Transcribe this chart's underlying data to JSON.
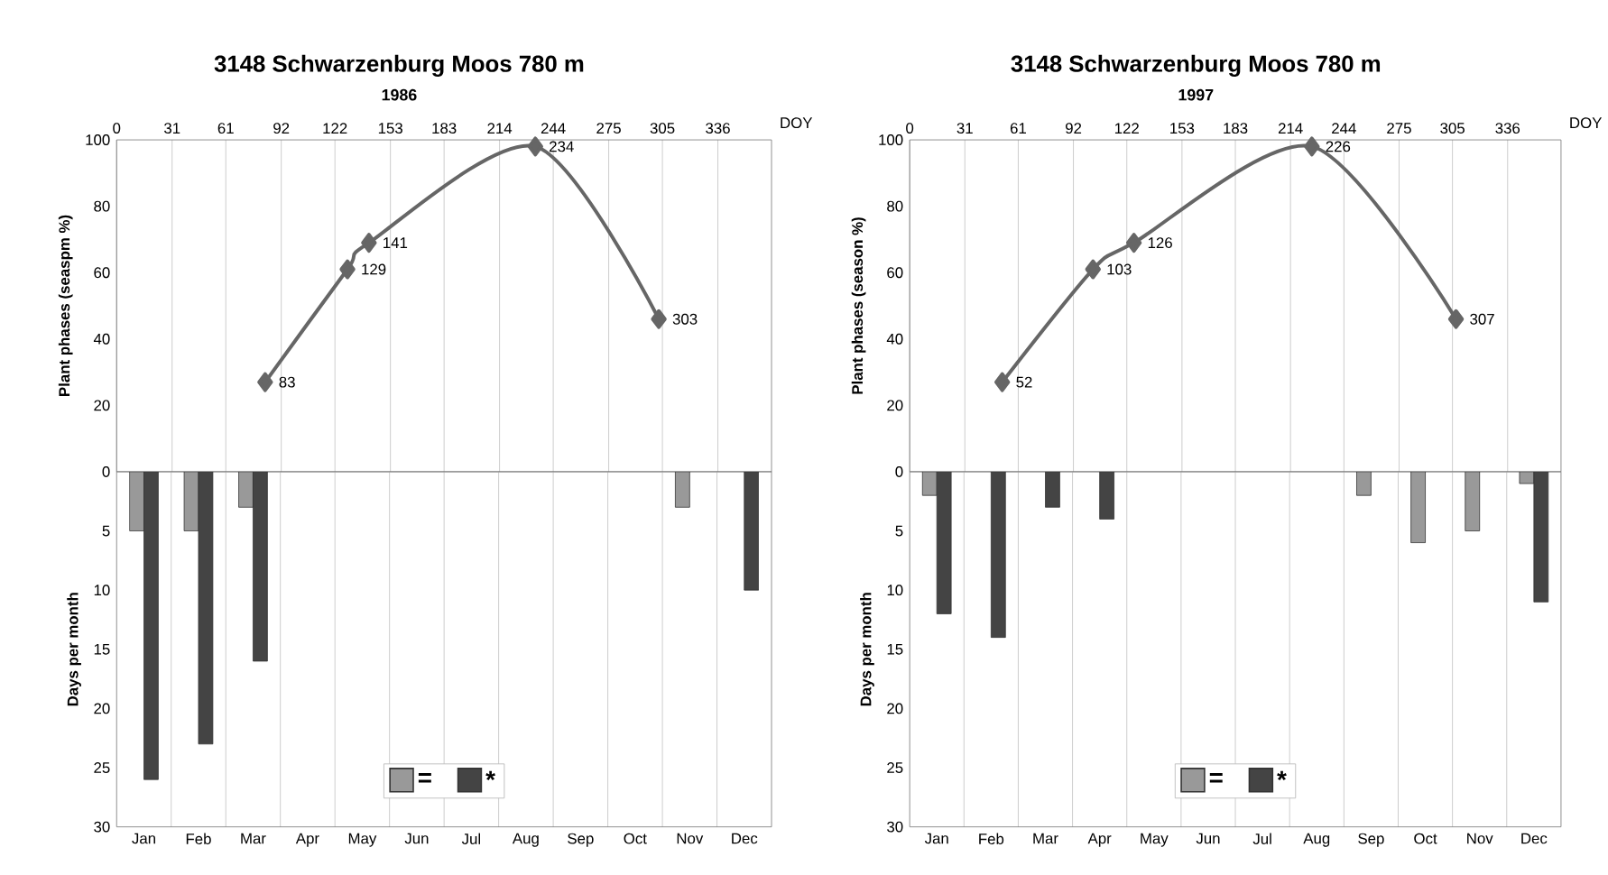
{
  "chart_data": [
    {
      "type": "line",
      "title": "3148 Schwarzenburg Moos 780 m",
      "subtitle": "1986",
      "xlabel": "DOY",
      "ylabel": "Plant phases (seaspm %)",
      "x": [
        83,
        129,
        141,
        234,
        303
      ],
      "xlim": [
        0,
        366
      ],
      "xticks": [
        0,
        31,
        61,
        92,
        122,
        153,
        183,
        214,
        244,
        275,
        305,
        336
      ],
      "ylim": [
        0,
        100
      ],
      "yticks": [
        20,
        40,
        60,
        80,
        100
      ],
      "grid": "x",
      "marker": "diamond",
      "line_style": "solid",
      "series": [
        {
          "color": "#666666",
          "values": [
            27,
            61,
            69,
            98,
            46
          ]
        }
      ],
      "annotations": [
        {
          "text": "83",
          "x": 83,
          "y": 27
        },
        {
          "text": "129",
          "x": 129,
          "y": 61
        },
        {
          "text": "141",
          "x": 141,
          "y": 69
        },
        {
          "text": "234",
          "x": 234,
          "y": 98
        },
        {
          "text": "303",
          "x": 303,
          "y": 46
        }
      ]
    },
    {
      "type": "bar",
      "ylabel": "Days per month",
      "categories": [
        "Jan",
        "Feb",
        "Mar",
        "Apr",
        "May",
        "Jun",
        "Jul",
        "Aug",
        "Sep",
        "Oct",
        "Nov",
        "Dec"
      ],
      "ylim": [
        30,
        0
      ],
      "yticks": [
        0,
        5,
        10,
        15,
        20,
        25,
        30
      ],
      "grid": "x",
      "legend": "bottom",
      "series": [
        {
          "name": "=",
          "color": "#999999",
          "values": [
            5,
            5,
            3,
            null,
            null,
            null,
            null,
            null,
            null,
            null,
            3,
            null
          ]
        },
        {
          "name": "*",
          "color": "#444444",
          "values": [
            26,
            23,
            16,
            null,
            null,
            null,
            null,
            null,
            null,
            null,
            null,
            10
          ]
        }
      ]
    },
    {
      "type": "line",
      "title": "3148 Schwarzenburg Moos 780 m",
      "subtitle": "1997",
      "xlabel": "DOY",
      "ylabel": "Plant phases (season %)",
      "x": [
        52,
        103,
        126,
        226,
        307
      ],
      "xlim": [
        0,
        366
      ],
      "xticks": [
        0,
        31,
        61,
        92,
        122,
        153,
        183,
        214,
        244,
        275,
        305,
        336
      ],
      "ylim": [
        0,
        100
      ],
      "yticks": [
        20,
        40,
        60,
        80,
        100
      ],
      "grid": "x",
      "marker": "diamond",
      "line_style": "solid",
      "series": [
        {
          "color": "#666666",
          "values": [
            27,
            61,
            69,
            98,
            46
          ]
        }
      ],
      "annotations": [
        {
          "text": "52",
          "x": 52,
          "y": 27
        },
        {
          "text": "103",
          "x": 103,
          "y": 61
        },
        {
          "text": "126",
          "x": 126,
          "y": 69
        },
        {
          "text": "226",
          "x": 226,
          "y": 98
        },
        {
          "text": "307",
          "x": 307,
          "y": 46
        }
      ]
    },
    {
      "type": "bar",
      "ylabel": "Days per month",
      "categories": [
        "Jan",
        "Feb",
        "Mar",
        "Apr",
        "May",
        "Jun",
        "Jul",
        "Aug",
        "Sep",
        "Oct",
        "Nov",
        "Dec"
      ],
      "ylim": [
        30,
        0
      ],
      "yticks": [
        0,
        5,
        10,
        15,
        20,
        25,
        30
      ],
      "grid": "x",
      "legend": "bottom",
      "series": [
        {
          "name": "=",
          "color": "#999999",
          "values": [
            2,
            null,
            null,
            null,
            null,
            null,
            null,
            null,
            2,
            6,
            5,
            1
          ]
        },
        {
          "name": "*",
          "color": "#444444",
          "values": [
            12,
            14,
            3,
            4,
            null,
            null,
            null,
            null,
            null,
            null,
            null,
            11
          ]
        }
      ]
    }
  ]
}
